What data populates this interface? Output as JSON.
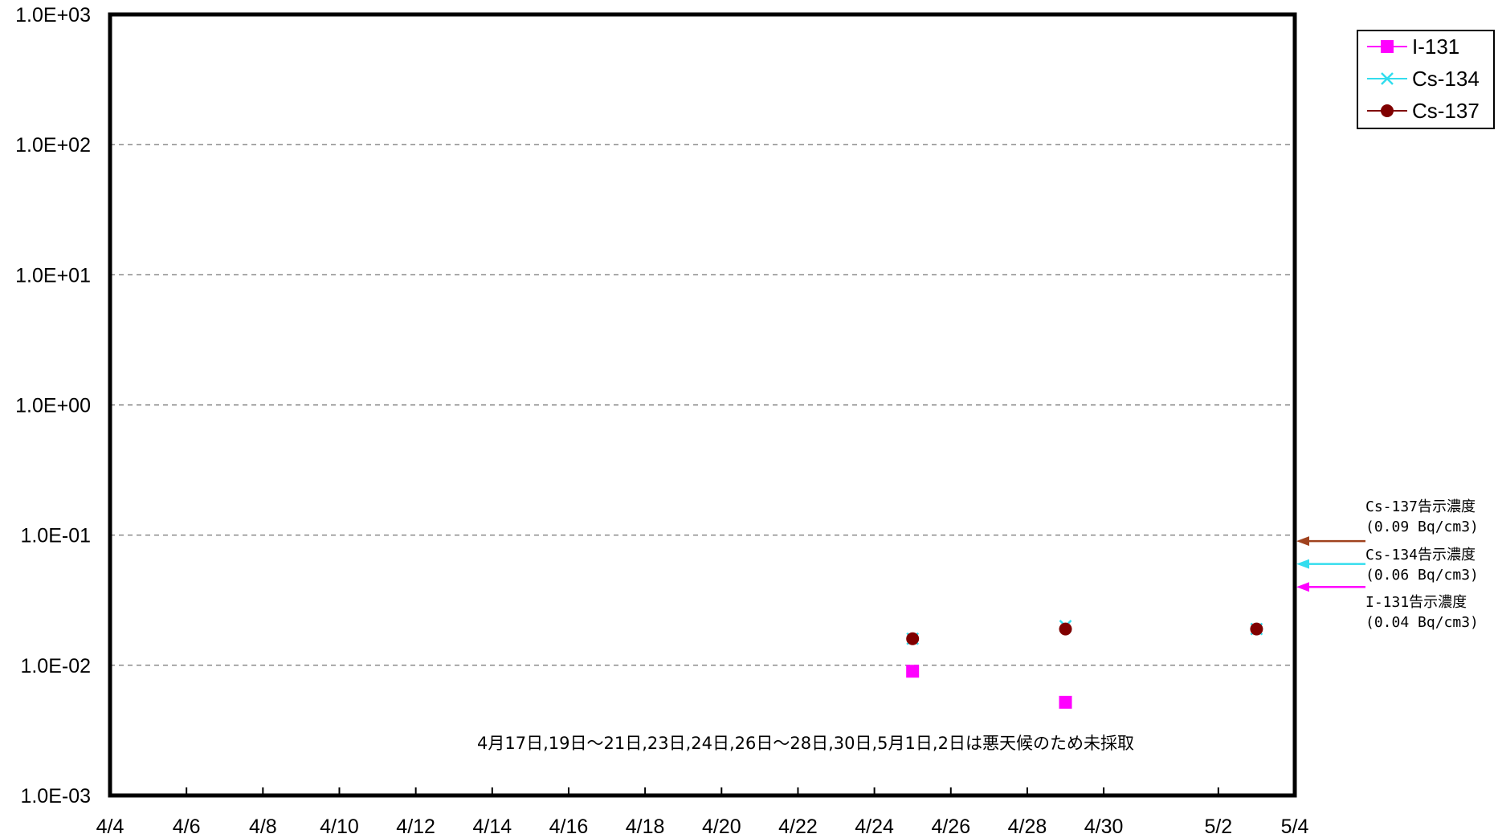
{
  "chart_data": {
    "type": "scatter",
    "yscale": "log",
    "ylim": [
      0.001,
      1000
    ],
    "y_tick_labels": [
      "1.0E-03",
      "1.0E-02",
      "1.0E-01",
      "1.0E+00",
      "1.0E+01",
      "1.0E+02",
      "1.0E+03"
    ],
    "x_tick_labels": [
      "4/4",
      "4/6",
      "4/8",
      "4/10",
      "4/12",
      "4/14",
      "4/16",
      "4/18",
      "4/20",
      "4/22",
      "4/24",
      "4/26",
      "4/28",
      "4/30",
      "5/2",
      "5/4"
    ],
    "xlim": [
      "4/4",
      "5/4"
    ],
    "grid": "horizontal-dashed",
    "legend_position": "top-right",
    "series": [
      {
        "name": "I-131",
        "color": "#ff00ff",
        "marker": "square",
        "points": [
          {
            "x": "4/25",
            "y": 0.009
          },
          {
            "x": "4/29",
            "y": 0.0052
          }
        ]
      },
      {
        "name": "Cs-134",
        "color": "#33ddee",
        "marker": "x",
        "points": [
          {
            "x": "4/25",
            "y": 0.016
          },
          {
            "x": "4/29",
            "y": 0.02
          },
          {
            "x": "5/3",
            "y": 0.019
          }
        ]
      },
      {
        "name": "Cs-137",
        "color": "#800000",
        "marker": "circle",
        "points": [
          {
            "x": "4/25",
            "y": 0.016
          },
          {
            "x": "4/29",
            "y": 0.019
          },
          {
            "x": "5/3",
            "y": 0.019
          }
        ]
      }
    ],
    "annotations": [
      {
        "lines": [
          "Cs-137告示濃度",
          "(0.09  Bq/cm3)"
        ],
        "y": 0.09,
        "color": "#a0421e"
      },
      {
        "lines": [
          "Cs-134告示濃度",
          "(0.06  Bq/cm3)"
        ],
        "y": 0.06,
        "color": "#33ddee"
      },
      {
        "lines": [
          "I-131告示濃度",
          "(0.04  Bq/cm3)"
        ],
        "y": 0.04,
        "color": "#ff00ff"
      }
    ],
    "note": "4月17日,19日～21日,23日,24日,26日～28日,30日,5月1日,2日は悪天候のため未採取"
  }
}
